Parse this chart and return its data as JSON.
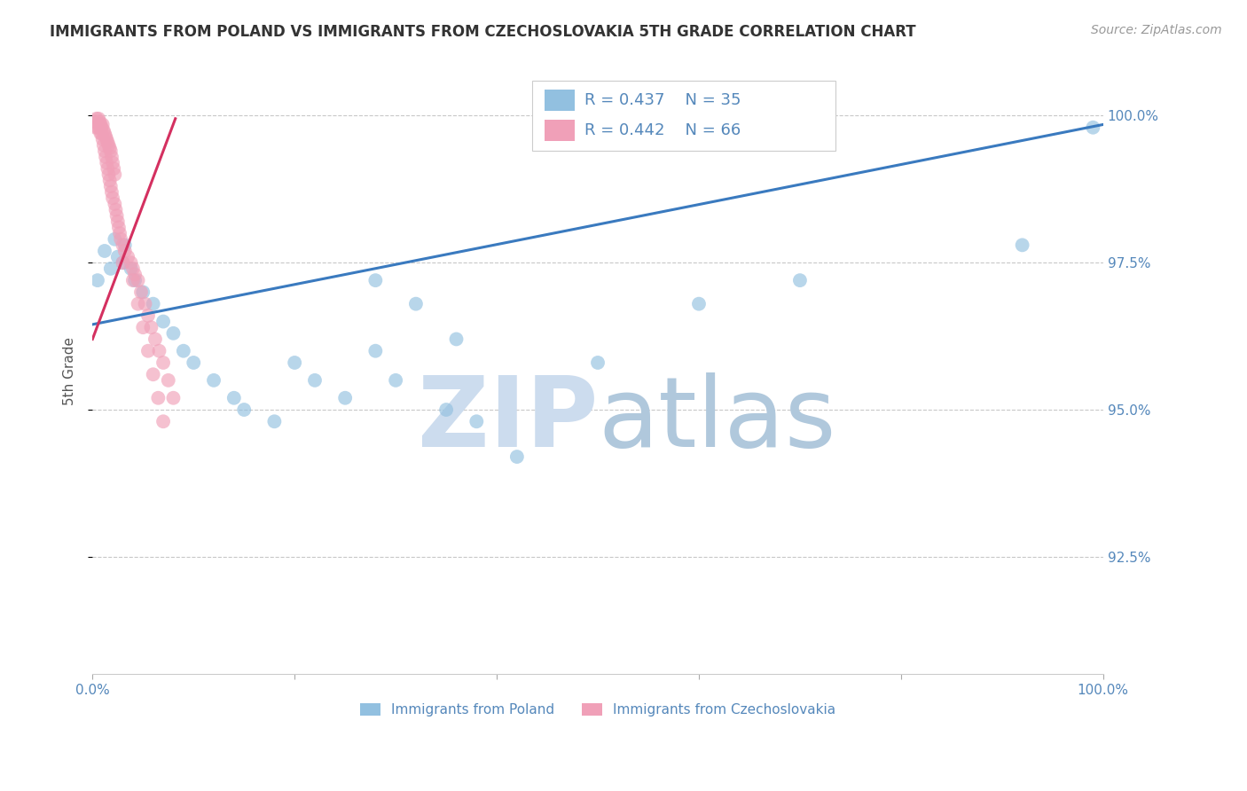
{
  "title": "IMMIGRANTS FROM POLAND VS IMMIGRANTS FROM CZECHOSLOVAKIA 5TH GRADE CORRELATION CHART",
  "source": "Source: ZipAtlas.com",
  "ylabel": "5th Grade",
  "legend_label1": "Immigrants from Poland",
  "legend_label2": "Immigrants from Czechoslovakia",
  "R1": 0.437,
  "N1": 35,
  "R2": 0.442,
  "N2": 66,
  "xlim": [
    0.0,
    1.0
  ],
  "ylim": [
    0.905,
    1.008
  ],
  "y_ticks": [
    0.925,
    0.95,
    0.975,
    1.0
  ],
  "y_tick_labels": [
    "92.5%",
    "95.0%",
    "97.5%",
    "100.0%"
  ],
  "x_ticks": [
    0.0,
    0.2,
    0.4,
    0.6,
    0.8,
    1.0
  ],
  "x_tick_labels": [
    "0.0%",
    "",
    "",
    "",
    "",
    "100.0%"
  ],
  "blue_color": "#92c0e0",
  "pink_color": "#f0a0b8",
  "blue_line_color": "#3a7abf",
  "pink_line_color": "#d43060",
  "grid_color": "#c8c8c8",
  "title_color": "#333333",
  "tick_color": "#5588bb",
  "watermark_zip_color": "#ccdcee",
  "watermark_atlas_color": "#b0c8dc",
  "background_color": "#ffffff",
  "blue_scatter_x": [
    0.005,
    0.012,
    0.018,
    0.022,
    0.025,
    0.03,
    0.032,
    0.038,
    0.042,
    0.05,
    0.06,
    0.07,
    0.08,
    0.09,
    0.1,
    0.12,
    0.14,
    0.15,
    0.18,
    0.2,
    0.22,
    0.25,
    0.28,
    0.3,
    0.35,
    0.38,
    0.42,
    0.28,
    0.32,
    0.36,
    0.5,
    0.6,
    0.7,
    0.92,
    0.99
  ],
  "blue_scatter_y": [
    0.972,
    0.977,
    0.974,
    0.979,
    0.976,
    0.975,
    0.978,
    0.974,
    0.972,
    0.97,
    0.968,
    0.965,
    0.963,
    0.96,
    0.958,
    0.955,
    0.952,
    0.95,
    0.948,
    0.958,
    0.955,
    0.952,
    0.96,
    0.955,
    0.95,
    0.948,
    0.942,
    0.972,
    0.968,
    0.962,
    0.958,
    0.968,
    0.972,
    0.978,
    0.998
  ],
  "pink_scatter_x": [
    0.002,
    0.003,
    0.004,
    0.005,
    0.006,
    0.007,
    0.007,
    0.008,
    0.008,
    0.009,
    0.009,
    0.01,
    0.01,
    0.011,
    0.011,
    0.012,
    0.012,
    0.013,
    0.013,
    0.014,
    0.014,
    0.015,
    0.015,
    0.016,
    0.016,
    0.017,
    0.017,
    0.018,
    0.018,
    0.019,
    0.019,
    0.02,
    0.02,
    0.021,
    0.022,
    0.022,
    0.023,
    0.024,
    0.025,
    0.026,
    0.027,
    0.028,
    0.03,
    0.032,
    0.035,
    0.038,
    0.04,
    0.042,
    0.045,
    0.048,
    0.052,
    0.055,
    0.058,
    0.062,
    0.066,
    0.07,
    0.075,
    0.08,
    0.03,
    0.04,
    0.045,
    0.05,
    0.055,
    0.06,
    0.065,
    0.07
  ],
  "pink_scatter_y": [
    0.999,
    0.998,
    0.9995,
    0.998,
    0.9995,
    0.998,
    0.999,
    0.997,
    0.9985,
    0.998,
    0.997,
    0.9985,
    0.996,
    0.9975,
    0.995,
    0.997,
    0.994,
    0.9965,
    0.993,
    0.996,
    0.992,
    0.9955,
    0.991,
    0.995,
    0.99,
    0.9945,
    0.989,
    0.994,
    0.988,
    0.993,
    0.987,
    0.992,
    0.986,
    0.991,
    0.99,
    0.985,
    0.984,
    0.983,
    0.982,
    0.981,
    0.98,
    0.979,
    0.978,
    0.977,
    0.976,
    0.975,
    0.974,
    0.973,
    0.972,
    0.97,
    0.968,
    0.966,
    0.964,
    0.962,
    0.96,
    0.958,
    0.955,
    0.952,
    0.975,
    0.972,
    0.968,
    0.964,
    0.96,
    0.956,
    0.952,
    0.948
  ],
  "blue_line_x": [
    0.0,
    1.0
  ],
  "blue_line_y": [
    0.9645,
    0.9985
  ],
  "pink_line_x": [
    0.0,
    0.082
  ],
  "pink_line_y": [
    0.962,
    0.9995
  ]
}
